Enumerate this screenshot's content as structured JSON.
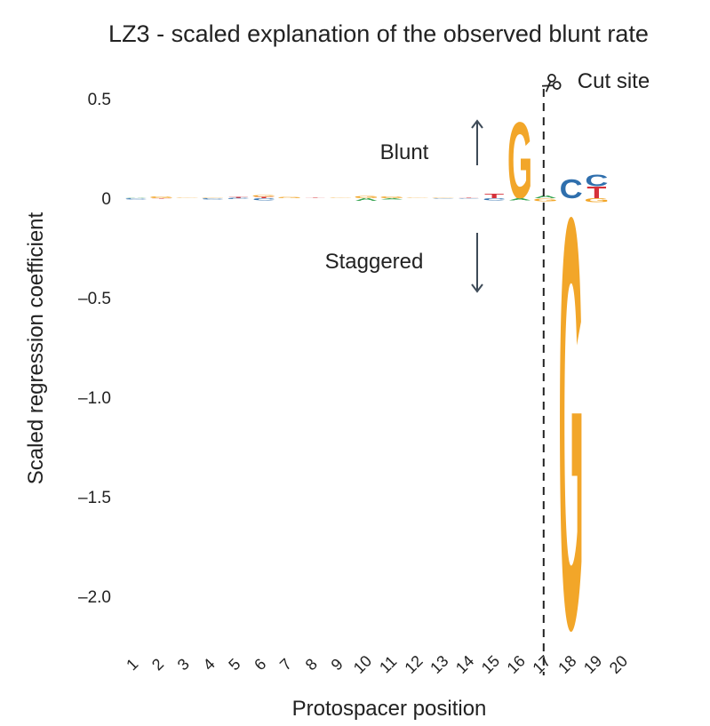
{
  "chart_data": {
    "type": "sequence-logo",
    "title": "LZ3 - scaled explanation of the observed blunt rate",
    "xlabel": "Protospacer position",
    "ylabel": "Scaled regression coefficient",
    "ylim": [
      -2.2,
      0.55
    ],
    "yticks": [
      {
        "value": 0.5,
        "label": "0.5"
      },
      {
        "value": 0,
        "label": "0"
      },
      {
        "value": -0.5,
        "label": "–0.5"
      },
      {
        "value": -1.0,
        "label": "–1.0"
      },
      {
        "value": -1.5,
        "label": "–1.5"
      },
      {
        "value": -2.0,
        "label": "–2.0"
      }
    ],
    "positions": [
      "1",
      "2",
      "3",
      "4",
      "5",
      "6",
      "7",
      "8",
      "9",
      "10",
      "11",
      "12",
      "13",
      "14",
      "15",
      "16",
      "17",
      "18",
      "19",
      "20"
    ],
    "cut_site_label": "Cut site",
    "cut_site_after_position": 17,
    "annotations": {
      "up": {
        "label": "Blunt"
      },
      "down": {
        "label": "Staggered"
      }
    },
    "colors": {
      "A": "#3aa655",
      "C": "#2f6fad",
      "G": "#f2a629",
      "T": "#d6313a"
    },
    "letters": [
      {
        "pos": 1,
        "stacks": [
          {
            "base": "A",
            "value": 0.004
          },
          {
            "base": "C",
            "value": -0.006
          }
        ]
      },
      {
        "pos": 2,
        "stacks": [
          {
            "base": "G",
            "value": 0.008
          },
          {
            "base": "T",
            "value": -0.004
          }
        ]
      },
      {
        "pos": 3,
        "stacks": [
          {
            "base": "G",
            "value": 0.004
          }
        ]
      },
      {
        "pos": 4,
        "stacks": [
          {
            "base": "G",
            "value": 0.003
          },
          {
            "base": "C",
            "value": -0.006
          }
        ]
      },
      {
        "pos": 5,
        "stacks": [
          {
            "base": "T",
            "value": 0.006
          },
          {
            "base": "C",
            "value": -0.005
          }
        ]
      },
      {
        "pos": 6,
        "stacks": [
          {
            "base": "G",
            "value": 0.008
          },
          {
            "base": "T",
            "value": 0.006
          },
          {
            "base": "C",
            "value": -0.012
          }
        ]
      },
      {
        "pos": 7,
        "stacks": [
          {
            "base": "G",
            "value": 0.005
          }
        ]
      },
      {
        "pos": 8,
        "stacks": [
          {
            "base": "T",
            "value": 0.003
          }
        ]
      },
      {
        "pos": 9,
        "stacks": [
          {
            "base": "G",
            "value": 0.003
          }
        ]
      },
      {
        "pos": 10,
        "stacks": [
          {
            "base": "G",
            "value": 0.012
          },
          {
            "base": "A",
            "value": -0.014
          }
        ]
      },
      {
        "pos": 11,
        "stacks": [
          {
            "base": "G",
            "value": 0.008
          },
          {
            "base": "A",
            "value": -0.006
          }
        ]
      },
      {
        "pos": 12,
        "stacks": [
          {
            "base": "G",
            "value": 0.004
          }
        ]
      },
      {
        "pos": 13,
        "stacks": [
          {
            "base": "G",
            "value": 0.004
          },
          {
            "base": "C",
            "value": -0.003
          }
        ]
      },
      {
        "pos": 14,
        "stacks": [
          {
            "base": "T",
            "value": 0.003
          },
          {
            "base": "C",
            "value": -0.003
          }
        ]
      },
      {
        "pos": 15,
        "stacks": [
          {
            "base": "T",
            "value": 0.025
          },
          {
            "base": "C",
            "value": -0.012
          }
        ]
      },
      {
        "pos": 16,
        "stacks": [
          {
            "base": "G",
            "value": 0.4
          },
          {
            "base": "A",
            "value": -0.012
          }
        ]
      },
      {
        "pos": 17,
        "stacks": [
          {
            "base": "A",
            "value": 0.015
          },
          {
            "base": "G",
            "value": -0.015
          }
        ]
      },
      {
        "pos": 18,
        "stacks": [
          {
            "base": "C",
            "value": 0.1
          },
          {
            "base": "G",
            "value": -2.15
          }
        ]
      },
      {
        "pos": 19,
        "stacks": [
          {
            "base": "T",
            "value": 0.06
          },
          {
            "base": "C",
            "value": 0.06
          },
          {
            "base": "G",
            "value": -0.02
          }
        ]
      }
    ]
  }
}
